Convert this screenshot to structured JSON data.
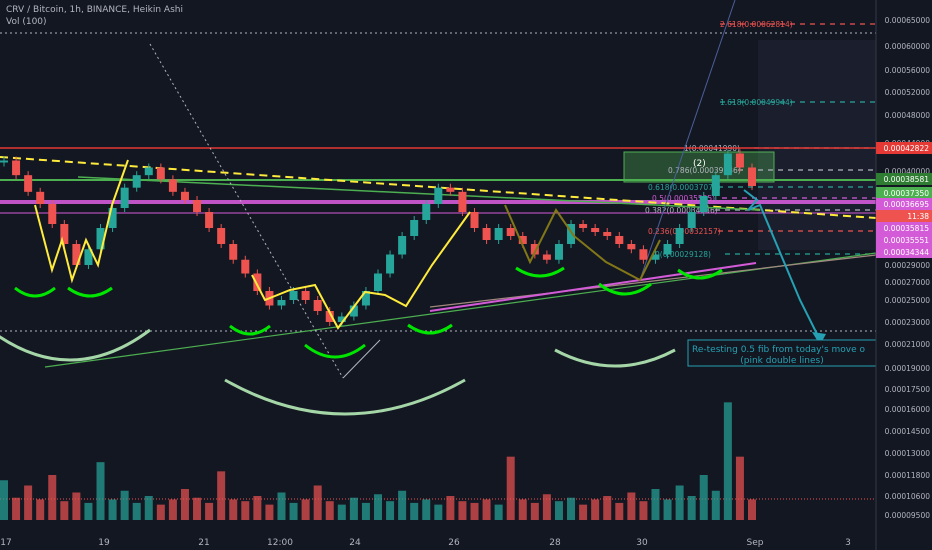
{
  "header": {
    "symbol_line": "CRV / Bitcoin, 1h, BINANCE, Heikin Ashi",
    "volume_line": "Vol (100)"
  },
  "colors": {
    "background": "#131722",
    "up": "#26a69a",
    "down": "#ef5350",
    "pink_level": "#d45bd8",
    "green_level": "#4caf50",
    "red_level": "#e53935",
    "yellow_pattern": "#ffeb3b",
    "fib_teal": "#26a69a",
    "fib_red": "#ef5350",
    "arrow": "#26a1b3",
    "smile_green": "#00e600",
    "big_arc": "#a5d6a7"
  },
  "annotation": {
    "line1": "Re-testing 0.5 fib from today's move o",
    "line2": "(pink double lines)"
  },
  "wave_label": "(2)",
  "chart_data": {
    "type": "candlestick",
    "style": "Heikin Ashi",
    "symbol": "CRV / Bitcoin",
    "timeframe": "1h",
    "exchange": "BINANCE",
    "volume_indicator": "Vol (100)",
    "x_tick_labels": [
      "17",
      "19",
      "21",
      "12:00",
      "24",
      "26",
      "28",
      "30",
      "Sep",
      "3"
    ],
    "y_tick_labels": [
      "0.00065000",
      "0.00060000",
      "0.00056000",
      "0.00052000",
      "0.00048000",
      "0.00044000",
      "0.00040000",
      "0.00037000",
      "0.00034000",
      "0.00031000",
      "0.00029000",
      "0.00027000",
      "0.00025000",
      "0.00023000",
      "0.00021000",
      "0.00019000",
      "0.00017500",
      "0.00016000",
      "0.00014500",
      "0.00013000",
      "0.00011800",
      "0.00010600",
      "0.00009500"
    ],
    "price_labels": [
      {
        "value": "0.00042822",
        "color": "#e53935"
      },
      {
        "value": "0.00038581",
        "color": "#2e7d32"
      },
      {
        "value": "0.00037350",
        "color": "#4caf50"
      },
      {
        "value": "0.00036695",
        "color": "#d45bd8"
      },
      {
        "value": "11:38",
        "color": "#ef5350"
      },
      {
        "value": "0.00035815",
        "color": "#d45bd8"
      },
      {
        "value": "0.00035551",
        "color": "#d45bd8"
      },
      {
        "value": "0.00034344",
        "color": "#d45bd8"
      }
    ],
    "fib_levels": [
      {
        "ratio": "2.618",
        "label": "2.618(0.00062814)"
      },
      {
        "ratio": "1.618",
        "label": "1.618(0.00049944)"
      },
      {
        "ratio": "1",
        "label": "1(0.00041990)"
      },
      {
        "ratio": "0.786",
        "label": "0.786(0.00039236)"
      },
      {
        "ratio": "0.618",
        "label": "0.618(0.00037074)"
      },
      {
        "ratio": "0.5",
        "label": "0.5(0.00035555)"
      },
      {
        "ratio": "0.382",
        "label": "0.382(0.00034036)"
      },
      {
        "ratio": "0.236",
        "label": "0.236(0.00032157)"
      },
      {
        "ratio": "0",
        "label": "0(0.00029128)"
      }
    ],
    "price_path": [
      0.000415,
      0.000395,
      0.000375,
      0.00036,
      0.000335,
      0.00031,
      0.00029,
      0.000305,
      0.00033,
      0.000355,
      0.00038,
      0.000395,
      0.000405,
      0.00039,
      0.000375,
      0.000365,
      0.00035,
      0.00033,
      0.00031,
      0.000295,
      0.00028,
      0.00026,
      0.000245,
      0.00025,
      0.00026,
      0.00025,
      0.00024,
      0.00023,
      0.000235,
      0.000245,
      0.00026,
      0.00028,
      0.0003,
      0.00032,
      0.00034,
      0.00036,
      0.00038,
      0.000375,
      0.00035,
      0.00033,
      0.000315,
      0.00033,
      0.00032,
      0.00031,
      0.0003,
      0.000295,
      0.00031,
      0.000335,
      0.00033,
      0.000325,
      0.00032,
      0.00031,
      0.000305,
      0.000295,
      0.0003,
      0.00031,
      0.00033,
      0.00035,
      0.00037,
      0.000395,
      0.000425,
      0.000405,
      0.000382
    ],
    "volume_path": [
      0.000115,
      0.000105,
      0.000112,
      0.000104,
      0.000118,
      0.000103,
      0.000108,
      0.000102,
      0.000125,
      0.000104,
      0.000109,
      0.000102,
      0.000106,
      0.000101,
      0.000104,
      0.00011,
      0.000105,
      0.000102,
      0.00012,
      0.000104,
      0.000103,
      0.000106,
      0.000101,
      0.000108,
      0.000102,
      0.000104,
      0.000112,
      0.000103,
      0.000101,
      0.000105,
      0.000102,
      0.000107,
      0.000103,
      0.000109,
      0.000102,
      0.000104,
      0.000101,
      0.000106,
      0.000103,
      0.000102,
      0.000104,
      0.000101,
      0.000128,
      0.000104,
      0.000102,
      0.000107,
      0.000103,
      0.000105,
      0.000101,
      0.000104,
      0.000106,
      0.000102,
      0.000108,
      0.000103,
      0.00011,
      0.000104,
      0.000112,
      0.000106,
      0.000118,
      0.000109,
      0.000165,
      0.000128,
      0.000104
    ],
    "grid": false
  }
}
